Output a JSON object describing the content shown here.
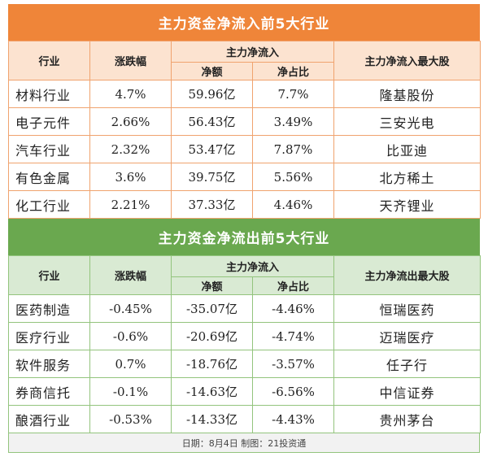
{
  "colors": {
    "inflow_banner": "#ef8539",
    "outflow_banner": "#6aa84f",
    "inflow_header_bg": "#fce3d0",
    "outflow_header_bg": "#d9ead3"
  },
  "inflow": {
    "title": "主力资金净流入前5大行业",
    "headers": {
      "industry": "行业",
      "change": "涨跌幅",
      "net_group": "主力净流入",
      "net_amount": "净额",
      "net_ratio": "净占比",
      "top_stock": "主力净流入最大股"
    },
    "rows": [
      {
        "industry": "材料行业",
        "change": "4.7%",
        "net_amount": "59.96亿",
        "net_ratio": "7.7%",
        "top_stock": "隆基股份"
      },
      {
        "industry": "电子元件",
        "change": "2.66%",
        "net_amount": "56.43亿",
        "net_ratio": "3.49%",
        "top_stock": "三安光电"
      },
      {
        "industry": "汽车行业",
        "change": "2.32%",
        "net_amount": "53.47亿",
        "net_ratio": "7.87%",
        "top_stock": "比亚迪"
      },
      {
        "industry": "有色金属",
        "change": "3.6%",
        "net_amount": "39.75亿",
        "net_ratio": "5.56%",
        "top_stock": "北方稀土"
      },
      {
        "industry": "化工行业",
        "change": "2.21%",
        "net_amount": "37.33亿",
        "net_ratio": "4.46%",
        "top_stock": "天齐锂业"
      }
    ]
  },
  "outflow": {
    "title": "主力资金净流出前5大行业",
    "headers": {
      "industry": "行业",
      "change": "涨跌幅",
      "net_group": "主力净流入",
      "net_amount": "净额",
      "net_ratio": "净占比",
      "top_stock": "主力净流出最大股"
    },
    "rows": [
      {
        "industry": "医药制造",
        "change": "-0.45%",
        "net_amount": "-35.07亿",
        "net_ratio": "-4.46%",
        "top_stock": "恒瑞医药"
      },
      {
        "industry": "医疗行业",
        "change": "-0.6%",
        "net_amount": "-20.69亿",
        "net_ratio": "-4.74%",
        "top_stock": "迈瑞医疗"
      },
      {
        "industry": "软件服务",
        "change": "0.7%",
        "net_amount": "-18.76亿",
        "net_ratio": "-3.57%",
        "top_stock": "任子行"
      },
      {
        "industry": "券商信托",
        "change": "-0.1%",
        "net_amount": "-14.63亿",
        "net_ratio": "-6.56%",
        "top_stock": "中信证券"
      },
      {
        "industry": "酿酒行业",
        "change": "-0.53%",
        "net_amount": "-14.33亿",
        "net_ratio": "-4.43%",
        "top_stock": "贵州茅台"
      }
    ]
  },
  "footer": "日期：8月4日  制图：21投资通"
}
